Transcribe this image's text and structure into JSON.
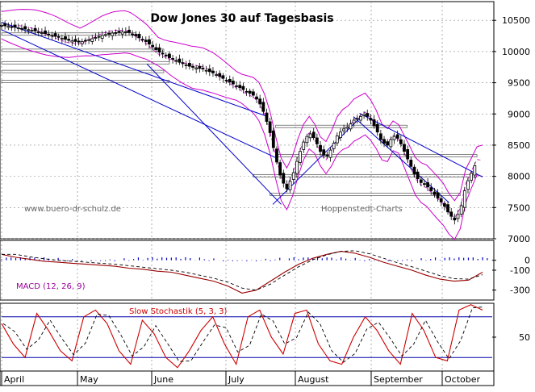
{
  "colors": {
    "background": "#ffffff",
    "candle": "#000000",
    "bollinger": "#cc00cc",
    "trendline": "#0000cc",
    "support": "#666666",
    "macd_line": "#990000",
    "macd_hist": "#0000cc",
    "stoch_k": "#cc0000",
    "stoch_d": "#000000",
    "stoch_ref": "#0000aa",
    "grid": "#888888",
    "title": "#000000",
    "macd_label": "#990099",
    "stoch_label": "#cc0000",
    "watermark": "#666666"
  },
  "chart_data": [
    {
      "type": "candlestick",
      "title": "Dow Jones 30 auf Tagesbasis",
      "watermark_left": "www.buero-dr-schulz.de",
      "watermark_right": "Hoppenstedt-Charts",
      "months": [
        "April",
        "May",
        "June",
        "July",
        "August",
        "September",
        "October"
      ],
      "y_ticks": [
        "10500",
        "10000",
        "9500",
        "9000",
        "8500",
        "8000",
        "7500",
        "7000"
      ],
      "ylim": [
        7000,
        10800
      ],
      "price_path": [
        [
          0,
          10420
        ],
        [
          6,
          10380
        ],
        [
          12,
          10330
        ],
        [
          18,
          10260
        ],
        [
          24,
          10180
        ],
        [
          28,
          10150
        ],
        [
          32,
          10200
        ],
        [
          36,
          10260
        ],
        [
          40,
          10300
        ],
        [
          45,
          10320
        ],
        [
          48,
          10250
        ],
        [
          52,
          10150
        ],
        [
          56,
          10000
        ],
        [
          60,
          9900
        ],
        [
          64,
          9820
        ],
        [
          68,
          9750
        ],
        [
          72,
          9720
        ],
        [
          76,
          9650
        ],
        [
          80,
          9550
        ],
        [
          84,
          9450
        ],
        [
          88,
          9350
        ],
        [
          90,
          9300
        ],
        [
          92,
          9200
        ],
        [
          94,
          9000
        ],
        [
          96,
          8700
        ],
        [
          98,
          8300
        ],
        [
          100,
          7950
        ],
        [
          102,
          7800
        ],
        [
          104,
          8000
        ],
        [
          106,
          8300
        ],
        [
          108,
          8550
        ],
        [
          110,
          8700
        ],
        [
          112,
          8600
        ],
        [
          114,
          8400
        ],
        [
          116,
          8300
        ],
        [
          118,
          8450
        ],
        [
          120,
          8650
        ],
        [
          122,
          8750
        ],
        [
          124,
          8800
        ],
        [
          126,
          8900
        ],
        [
          128,
          8950
        ],
        [
          130,
          9000
        ],
        [
          132,
          8900
        ],
        [
          134,
          8750
        ],
        [
          136,
          8550
        ],
        [
          138,
          8500
        ],
        [
          140,
          8650
        ],
        [
          142,
          8600
        ],
        [
          144,
          8400
        ],
        [
          146,
          8200
        ],
        [
          148,
          8000
        ],
        [
          150,
          7900
        ],
        [
          152,
          7850
        ],
        [
          154,
          7750
        ],
        [
          156,
          7650
        ],
        [
          158,
          7550
        ],
        [
          160,
          7400
        ],
        [
          162,
          7300
        ],
        [
          164,
          7450
        ],
        [
          166,
          7850
        ],
        [
          168,
          8050
        ],
        [
          170,
          8250
        ]
      ],
      "support_lines": [
        {
          "from": 0,
          "to": 48,
          "level": 10280
        },
        {
          "from": 0,
          "to": 58,
          "level": 10020
        },
        {
          "from": 0,
          "to": 60,
          "level": 9820
        },
        {
          "from": 0,
          "to": 58,
          "level": 9680
        },
        {
          "from": 0,
          "to": 60,
          "level": 9520
        },
        {
          "from": 98,
          "to": 170,
          "level": 8330
        },
        {
          "from": 90,
          "to": 170,
          "level": 8010
        },
        {
          "from": 96,
          "to": 164,
          "level": 7710
        },
        {
          "from": 98,
          "to": 145,
          "level": 8800
        }
      ],
      "trendlines": [
        {
          "x1": 0,
          "y1": 10470,
          "x2": 95,
          "y2": 8960
        },
        {
          "x1": 0,
          "y1": 10350,
          "x2": 98,
          "y2": 8300
        },
        {
          "x1": 52,
          "y1": 9800,
          "x2": 100,
          "y2": 7550
        },
        {
          "x1": 97,
          "y1": 7550,
          "x2": 128,
          "y2": 8930
        },
        {
          "x1": 128,
          "y1": 9010,
          "x2": 172,
          "y2": 7990
        },
        {
          "x1": 126,
          "y1": 8950,
          "x2": 160,
          "y2": 7580
        }
      ]
    },
    {
      "type": "line",
      "label": "MACD (12, 26, 9)",
      "y_ticks": [
        "0",
        "-100",
        "-300"
      ],
      "ylim": [
        -400,
        200
      ],
      "macd": [
        60,
        30,
        10,
        -10,
        -20,
        -30,
        -40,
        -50,
        -60,
        -80,
        -90,
        -110,
        -120,
        -150,
        -180,
        -210,
        -260,
        -330,
        -300,
        -210,
        -120,
        -40,
        20,
        60,
        90,
        70,
        30,
        -20,
        -60,
        -100,
        -150,
        -190,
        -210,
        -200,
        -120
      ]
    },
    {
      "type": "line",
      "label": "Slow Stochastik (5, 3, 3)",
      "y_ticks": [
        "50"
      ],
      "ylim": [
        0,
        100
      ],
      "ref_levels": [
        80,
        20
      ],
      "k": [
        70,
        40,
        20,
        85,
        60,
        30,
        15,
        80,
        90,
        70,
        30,
        10,
        75,
        55,
        20,
        5,
        30,
        60,
        80,
        40,
        10,
        80,
        90,
        50,
        25,
        85,
        90,
        40,
        15,
        10,
        50,
        80,
        60,
        30,
        10,
        85,
        60,
        20,
        15,
        90,
        98,
        90
      ],
      "month_labels": [
        "April",
        "May",
        "June",
        "July",
        "August",
        "September",
        "October"
      ]
    }
  ]
}
